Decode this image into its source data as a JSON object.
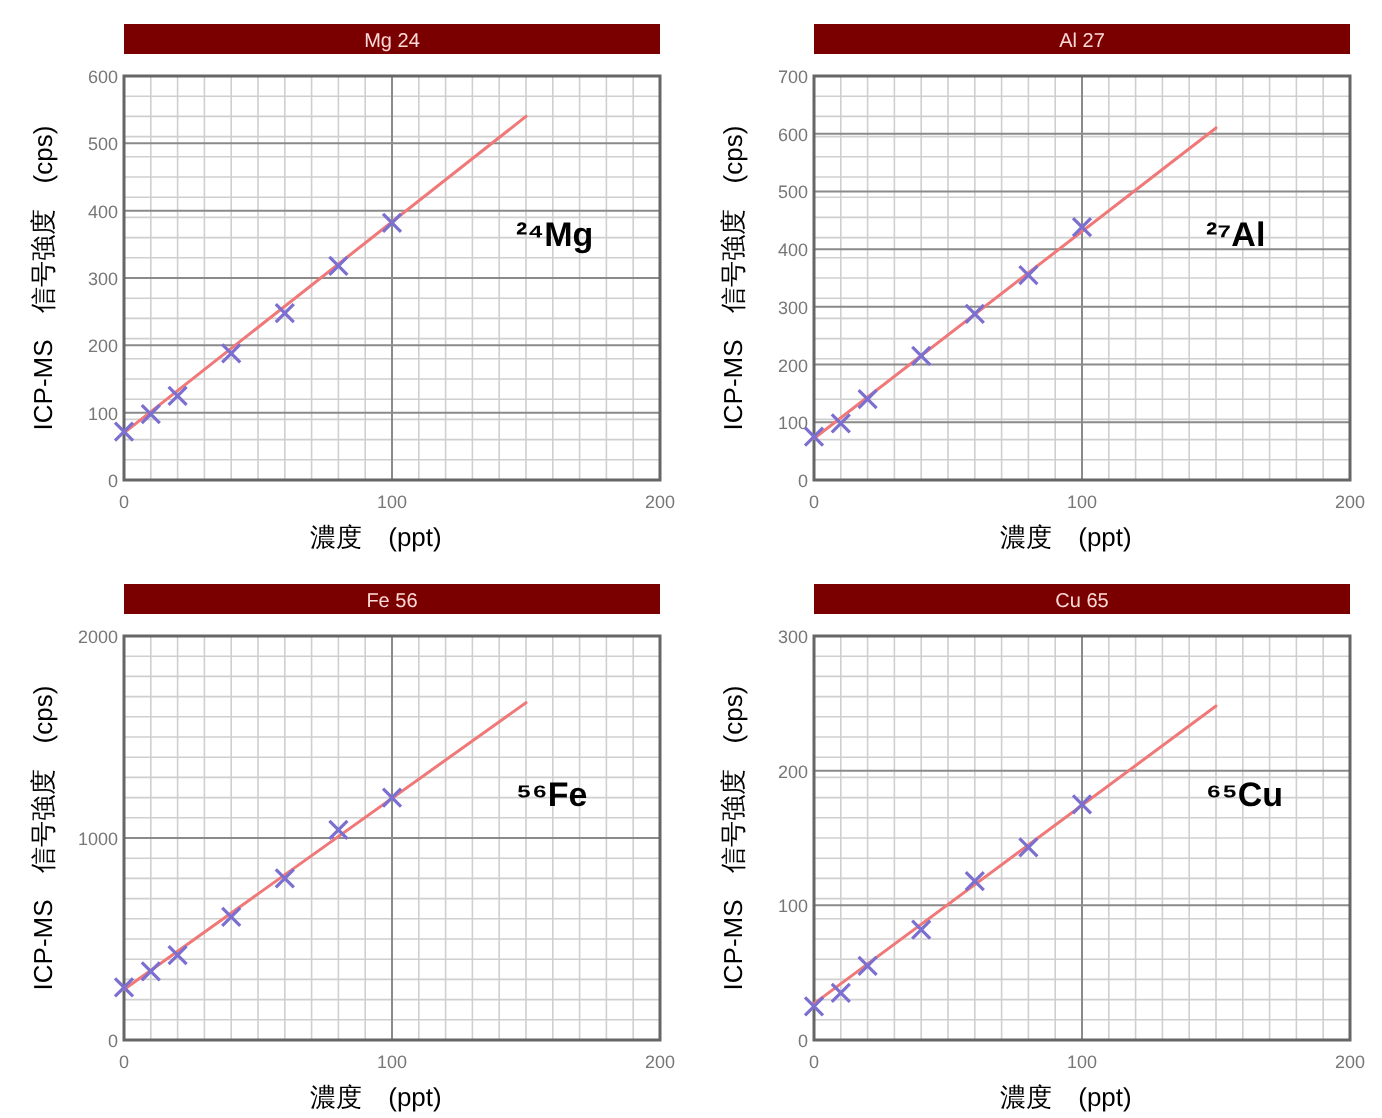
{
  "chart_data": [
    {
      "type": "scatter",
      "title": "Mg 24",
      "xlabel": "濃度　(ppt)",
      "ylabel": "ICP-MS　信号強度　(cps)",
      "annotations": [
        "²⁴Mg"
      ],
      "xlim": [
        0,
        200
      ],
      "xticks": [
        0,
        100,
        200
      ],
      "ylim": [
        0,
        600
      ],
      "yticks": [
        0,
        100,
        200,
        300,
        400,
        500,
        600
      ],
      "grid": true,
      "series": [
        {
          "color": "#7b6fd0",
          "marker": "cross",
          "x": [
            0,
            10,
            20,
            40,
            60,
            80,
            100
          ],
          "values": [
            72,
            98,
            125,
            188,
            248,
            318,
            382
          ]
        },
        {
          "type": "line",
          "color": "#f07878",
          "x": [
            0,
            150
          ],
          "values": [
            70,
            540
          ]
        }
      ]
    },
    {
      "type": "scatter",
      "title": "Al 27",
      "xlabel": "濃度　(ppt)",
      "ylabel": "ICP-MS　信号強度　(cps)",
      "annotations": [
        "²⁷Al"
      ],
      "xlim": [
        0,
        200
      ],
      "xticks": [
        0,
        100,
        200
      ],
      "ylim": [
        0,
        700
      ],
      "yticks": [
        0,
        100,
        200,
        300,
        400,
        500,
        600,
        700
      ],
      "grid": true,
      "series": [
        {
          "color": "#7b6fd0",
          "marker": "cross",
          "x": [
            0,
            10,
            20,
            40,
            60,
            80,
            100
          ],
          "values": [
            75,
            98,
            140,
            215,
            288,
            355,
            438
          ]
        },
        {
          "type": "line",
          "color": "#f07878",
          "x": [
            0,
            150
          ],
          "values": [
            72,
            610
          ]
        }
      ]
    },
    {
      "type": "scatter",
      "title": "Fe 56",
      "xlabel": "濃度　(ppt)",
      "ylabel": "ICP-MS　信号強度　(cps)",
      "annotations": [
        "⁵⁶Fe"
      ],
      "xlim": [
        0,
        200
      ],
      "xticks": [
        0,
        100,
        200
      ],
      "ylim": [
        0,
        2000
      ],
      "yticks": [
        0,
        1000,
        2000
      ],
      "grid": true,
      "series": [
        {
          "color": "#7b6fd0",
          "marker": "cross",
          "x": [
            0,
            10,
            20,
            40,
            60,
            80,
            100
          ],
          "values": [
            260,
            340,
            420,
            610,
            800,
            1040,
            1200
          ]
        },
        {
          "type": "line",
          "color": "#f07878",
          "x": [
            0,
            150
          ],
          "values": [
            250,
            1670
          ]
        }
      ]
    },
    {
      "type": "scatter",
      "title": "Cu 65",
      "xlabel": "濃度　(ppt)",
      "ylabel": "ICP-MS　信号強度　(cps)",
      "annotations": [
        "⁶⁵Cu"
      ],
      "xlim": [
        0,
        200
      ],
      "xticks": [
        0,
        100,
        200
      ],
      "ylim": [
        0,
        300
      ],
      "yticks": [
        0,
        100,
        200,
        300
      ],
      "grid": true,
      "series": [
        {
          "color": "#7b6fd0",
          "marker": "cross",
          "x": [
            0,
            10,
            20,
            40,
            60,
            80,
            100
          ],
          "values": [
            25,
            35,
            55,
            82,
            118,
            143,
            175
          ]
        },
        {
          "type": "line",
          "color": "#f07878",
          "x": [
            0,
            150
          ],
          "values": [
            27,
            248
          ]
        }
      ]
    }
  ]
}
